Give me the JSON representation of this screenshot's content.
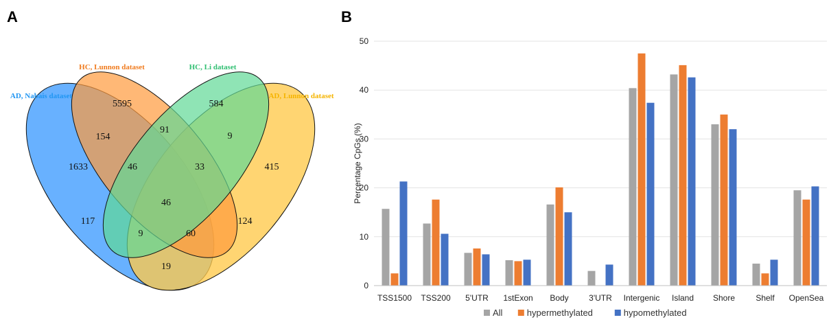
{
  "panels": {
    "a_label": "A",
    "b_label": "B"
  },
  "venn": {
    "sets": [
      {
        "name": "AD, Nabais dataset",
        "color": "#4da3ff",
        "text_color": "#2196f3"
      },
      {
        "name": "HC, Lunnon dataset",
        "color": "#ff9a3c",
        "text_color": "#f07b1e"
      },
      {
        "name": "HC, Li dataset",
        "color": "#5fd895",
        "text_color": "#2fbf71"
      },
      {
        "name": "AD, Lunnon dataset",
        "color": "#ffc94a",
        "text_color": "#f5b400"
      }
    ],
    "regions": [
      {
        "id": "nabais-only",
        "value": "1633"
      },
      {
        "id": "hc-lunnon-only",
        "value": "5595"
      },
      {
        "id": "hc-li-only",
        "value": "584"
      },
      {
        "id": "ad-lunnon-only",
        "value": "415"
      },
      {
        "id": "nabais-hclunnon",
        "value": "154"
      },
      {
        "id": "hclunnon-hcli",
        "value": "91"
      },
      {
        "id": "hcli-adlunnon",
        "value": "9"
      },
      {
        "id": "nabais-hclunnon-hcli",
        "value": "46"
      },
      {
        "id": "hclunnon-hcli-adlunnon",
        "value": "33"
      },
      {
        "id": "all-four",
        "value": "46"
      },
      {
        "id": "nabais-hcli",
        "value": "117"
      },
      {
        "id": "hclunnon-adlunnon",
        "value": "124"
      },
      {
        "id": "nabais-hcli-adlunnon",
        "value": "9"
      },
      {
        "id": "nabais-hclunnon-adlunnon",
        "value": "60"
      },
      {
        "id": "nabais-adlunnon",
        "value": "19"
      }
    ]
  },
  "chart_data": {
    "type": "bar",
    "title": "",
    "xlabel": "",
    "ylabel": "Percentage CpGs (%)",
    "ylim": [
      0,
      50
    ],
    "yticks": [
      0,
      10,
      20,
      30,
      40,
      50
    ],
    "grid": true,
    "legend_position": "bottom",
    "categories": [
      "TSS1500",
      "TSS200",
      "5'UTR",
      "1stExon",
      "Body",
      "3'UTR",
      "Intergenic",
      "Island",
      "Shore",
      "Shelf",
      "OpenSea"
    ],
    "series": [
      {
        "name": "All",
        "color": "#a5a5a5",
        "values": [
          15.7,
          12.7,
          6.7,
          5.2,
          16.6,
          3.0,
          40.4,
          43.2,
          33.0,
          4.5,
          19.5
        ]
      },
      {
        "name": "hypermethylated",
        "color": "#ed7d31",
        "values": [
          2.5,
          17.6,
          7.6,
          5.0,
          20.1,
          0,
          47.5,
          45.1,
          35.0,
          2.5,
          17.6
        ]
      },
      {
        "name": "hypomethylated",
        "color": "#4472c4",
        "values": [
          21.3,
          10.6,
          6.4,
          5.3,
          15.0,
          4.3,
          37.4,
          42.6,
          32.0,
          5.3,
          20.3
        ]
      }
    ]
  }
}
